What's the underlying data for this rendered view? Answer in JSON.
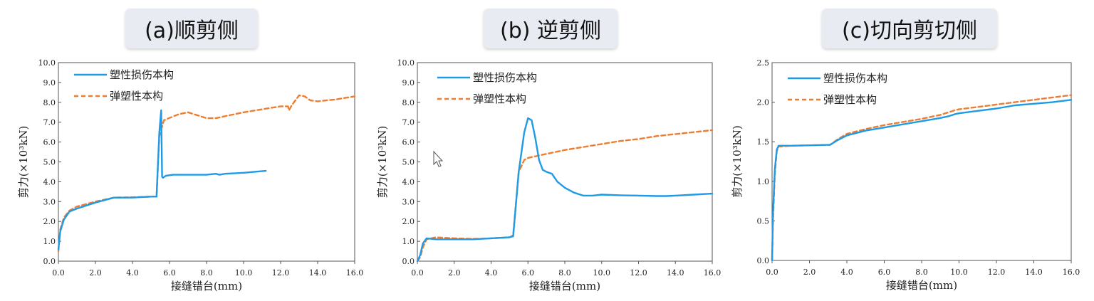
{
  "titles": [
    "(a)顺剪侧",
    "(b) 逆剪侧",
    "(c)切向剪切侧"
  ],
  "colors": {
    "damage": "#1f9be5",
    "elastic": "#ed7d31"
  },
  "chart_data": [
    {
      "type": "line",
      "title": "(a)顺剪侧",
      "xlabel": "接缝错台(mm)",
      "ylabel": "剪力(×10³kN)",
      "xlim": [
        0,
        16
      ],
      "ylim": [
        0,
        10
      ],
      "xticks": [
        "0.0",
        "2.0",
        "4.0",
        "6.0",
        "8.0",
        "10.0",
        "12.0",
        "14.0",
        "16.0"
      ],
      "yticks": [
        "0.0",
        "1.0",
        "2.0",
        "3.0",
        "4.0",
        "5.0",
        "6.0",
        "7.0",
        "8.0",
        "9.0",
        "10.0"
      ],
      "legend": "top-left",
      "series": [
        {
          "name": "塑性损伤本构",
          "style": "solid",
          "x": [
            0,
            0.1,
            0.3,
            0.6,
            1.0,
            2.0,
            3.0,
            4.0,
            5.0,
            5.3,
            5.45,
            5.55,
            5.6,
            5.65,
            5.8,
            6.2,
            7.0,
            8.0,
            8.5,
            8.7,
            9.0,
            10.0,
            11.2
          ],
          "y": [
            0.6,
            1.5,
            2.1,
            2.5,
            2.65,
            2.95,
            3.2,
            3.2,
            3.25,
            3.25,
            6.5,
            7.6,
            4.25,
            4.2,
            4.3,
            4.35,
            4.35,
            4.35,
            4.4,
            4.35,
            4.4,
            4.45,
            4.55
          ]
        },
        {
          "name": "弹塑性本构",
          "style": "dashed",
          "x": [
            0,
            0.1,
            0.3,
            0.6,
            1.0,
            2.0,
            3.0,
            4.0,
            5.0,
            5.3,
            5.45,
            5.7,
            6.5,
            7.0,
            8.0,
            8.5,
            9.0,
            10.0,
            11.0,
            12.0,
            12.4,
            12.45,
            12.6,
            13.0,
            13.3,
            13.6,
            14.0,
            14.5,
            15.0,
            16.0
          ],
          "y": [
            0.5,
            1.6,
            2.2,
            2.55,
            2.75,
            3.0,
            3.2,
            3.22,
            3.25,
            3.25,
            6.3,
            7.1,
            7.4,
            7.5,
            7.2,
            7.2,
            7.3,
            7.5,
            7.65,
            7.8,
            7.8,
            7.6,
            7.85,
            8.35,
            8.3,
            8.1,
            8.05,
            8.1,
            8.15,
            8.3
          ]
        }
      ]
    },
    {
      "type": "line",
      "title": "(b) 逆剪侧",
      "xlabel": "接缝错台(mm)",
      "ylabel": "剪力(×10³kN)",
      "xlim": [
        0,
        16
      ],
      "ylim": [
        0,
        10
      ],
      "xticks": [
        "0.0",
        "2.0",
        "4.0",
        "6.0",
        "8.0",
        "10.0",
        "12.0",
        "14.0",
        "16.0"
      ],
      "yticks": [
        "0.0",
        "1.0",
        "2.0",
        "3.0",
        "4.0",
        "5.0",
        "6.0",
        "7.0",
        "8.0",
        "9.0",
        "10.0"
      ],
      "legend": "top-left",
      "series": [
        {
          "name": "塑性损伤本构",
          "style": "solid",
          "x": [
            0,
            0.15,
            0.3,
            0.5,
            1.0,
            2.0,
            3.0,
            4.0,
            5.0,
            5.2,
            5.5,
            5.8,
            6.0,
            6.2,
            6.4,
            6.6,
            6.8,
            7.0,
            7.3,
            7.6,
            8.0,
            8.5,
            9.0,
            9.5,
            10.0,
            11.0,
            12.0,
            13.0,
            13.5,
            14.0,
            15.0,
            16.0
          ],
          "y": [
            0,
            0.3,
            0.9,
            1.15,
            1.1,
            1.1,
            1.1,
            1.15,
            1.2,
            1.25,
            4.5,
            6.5,
            7.2,
            7.1,
            6.2,
            5.1,
            4.6,
            4.5,
            4.4,
            4.0,
            3.7,
            3.45,
            3.3,
            3.3,
            3.35,
            3.32,
            3.3,
            3.28,
            3.28,
            3.3,
            3.35,
            3.4
          ]
        },
        {
          "name": "弹塑性本构",
          "style": "dashed",
          "x": [
            0,
            0.15,
            0.3,
            0.5,
            1.0,
            2.0,
            3.0,
            4.0,
            5.0,
            5.2,
            5.5,
            5.8,
            6.0,
            7.0,
            8.0,
            9.0,
            10.0,
            11.0,
            12.0,
            13.0,
            14.0,
            15.0,
            16.0
          ],
          "y": [
            0,
            0.2,
            0.7,
            1.1,
            1.2,
            1.15,
            1.12,
            1.15,
            1.2,
            1.3,
            4.5,
            5.1,
            5.2,
            5.4,
            5.6,
            5.75,
            5.9,
            6.05,
            6.15,
            6.3,
            6.4,
            6.5,
            6.6
          ]
        }
      ]
    },
    {
      "type": "line",
      "title": "(c)切向剪切侧",
      "xlabel": "接缝错台(mm)",
      "ylabel": "剪力(×10³kN)",
      "xlim": [
        0,
        16
      ],
      "ylim": [
        0,
        2.5
      ],
      "xticks": [
        "0.0",
        "2.0",
        "4.0",
        "6.0",
        "8.0",
        "10.0",
        "12.0",
        "14.0",
        "16.0"
      ],
      "yticks": [
        "0.0",
        "0.5",
        "1.0",
        "1.5",
        "2.0",
        "2.5"
      ],
      "legend": "top-left",
      "series": [
        {
          "name": "塑性损伤本构",
          "style": "solid",
          "x": [
            0,
            0.05,
            0.15,
            0.25,
            0.35,
            1.0,
            2.0,
            3.0,
            3.1,
            3.5,
            4.0,
            5.0,
            6.0,
            7.0,
            8.0,
            9.0,
            9.4,
            9.8,
            10.0,
            11.0,
            12.0,
            13.0,
            14.0,
            15.0,
            16.0
          ],
          "y": [
            0,
            0.6,
            1.15,
            1.4,
            1.45,
            1.45,
            1.455,
            1.46,
            1.46,
            1.52,
            1.58,
            1.64,
            1.68,
            1.72,
            1.76,
            1.8,
            1.82,
            1.85,
            1.86,
            1.89,
            1.92,
            1.96,
            1.98,
            2.0,
            2.03
          ]
        },
        {
          "name": "弹塑性本构",
          "style": "dashed",
          "x": [
            0,
            0.05,
            0.15,
            0.25,
            0.35,
            1.0,
            2.0,
            3.0,
            3.1,
            3.5,
            4.0,
            5.0,
            6.0,
            7.0,
            8.0,
            9.0,
            9.4,
            9.8,
            10.0,
            11.0,
            12.0,
            13.0,
            14.0,
            15.0,
            16.0
          ],
          "y": [
            0,
            0.5,
            1.1,
            1.38,
            1.44,
            1.45,
            1.455,
            1.46,
            1.46,
            1.53,
            1.6,
            1.66,
            1.71,
            1.75,
            1.79,
            1.84,
            1.87,
            1.9,
            1.91,
            1.94,
            1.97,
            2.0,
            2.03,
            2.06,
            2.09
          ]
        }
      ]
    }
  ]
}
